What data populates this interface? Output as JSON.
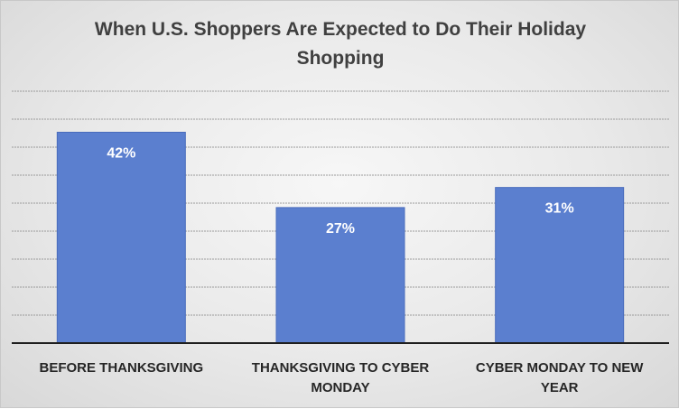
{
  "chart_data": {
    "type": "bar",
    "title": "When U.S. Shoppers Are Expected to Do Their Holiday Shopping",
    "categories": [
      [
        "BEFORE THANKSGIVING"
      ],
      [
        "THANKSGIVING TO CYBER",
        "MONDAY"
      ],
      [
        "CYBER MONDAY TO NEW",
        "YEAR"
      ]
    ],
    "values": [
      42,
      27,
      31
    ],
    "data_labels": [
      "42%",
      "27%",
      "31%"
    ],
    "xlabel": "",
    "ylabel": "",
    "ylim": [
      0,
      50
    ],
    "grid": true,
    "legend": "none",
    "bar_color": "#5b7fcf",
    "label_color": "#ffffff",
    "background": "#ebebeb"
  }
}
